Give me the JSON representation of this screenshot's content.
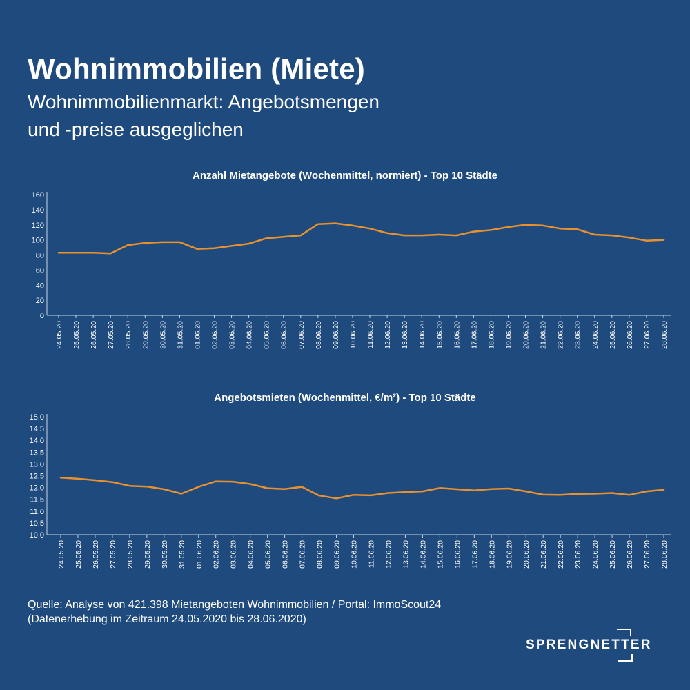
{
  "header": {
    "title": "Wohnimmobilien (Miete)",
    "subtitle_line1": "Wohnimmobilienmarkt: Angebotsmengen",
    "subtitle_line2": "und -preise ausgeglichen"
  },
  "colors": {
    "background": "#1f4a7d",
    "line": "#e8912e",
    "text": "#ffffff"
  },
  "chart_data": [
    {
      "type": "line",
      "title": "Anzahl Mietangebote (Wochenmittel, normiert) - Top 10 Städte",
      "xlabel": "",
      "ylabel": "",
      "categories": [
        "24.05.20",
        "25.05.20",
        "26.05.20",
        "27.05.20",
        "28.05.20",
        "29.05.20",
        "30.05.20",
        "31.05.20",
        "01.06.20",
        "02.06.20",
        "03.06.20",
        "04.06.20",
        "05.06.20",
        "06.06.20",
        "07.06.20",
        "08.06.20",
        "09.06.20",
        "10.06.20",
        "11.06.20",
        "12.06.20",
        "13.06.20",
        "14.06.20",
        "15.06.20",
        "16.06.20",
        "17.06.20",
        "18.06.20",
        "19.06.20",
        "20.06.20",
        "21.06.20",
        "22.06.20",
        "23.06.20",
        "24.06.20",
        "25.06.20",
        "26.06.20",
        "27.06.20",
        "28.06.20"
      ],
      "series": [
        {
          "values": [
            83,
            83,
            83,
            82,
            93,
            96,
            97,
            97,
            88,
            89,
            92,
            95,
            102,
            104,
            106,
            121,
            122,
            119,
            115,
            109,
            106,
            106,
            107,
            106,
            111,
            113,
            117,
            120,
            119,
            115,
            114,
            107,
            106,
            103,
            99,
            100
          ]
        }
      ],
      "ylim": [
        0,
        160
      ],
      "yticks": [
        "0",
        "20",
        "40",
        "60",
        "80",
        "100",
        "120",
        "140",
        "160"
      ],
      "grid": false
    },
    {
      "type": "line",
      "title": "Angebotsmieten (Wochenmittel, €/m²) - Top 10 Städte",
      "xlabel": "",
      "ylabel": "",
      "categories": [
        "24.05.20",
        "25.05.20",
        "26.05.20",
        "27.05.20",
        "28.05.20",
        "29.05.20",
        "30.05.20",
        "31.05.20",
        "01.06.20",
        "02.06.20",
        "03.06.20",
        "04.06.20",
        "05.06.20",
        "06.06.20",
        "07.06.20",
        "08.06.20",
        "09.06.20",
        "10.06.20",
        "11.06.20",
        "12.06.20",
        "13.06.20",
        "14.06.20",
        "15.06.20",
        "16.06.20",
        "17.06.20",
        "18.06.20",
        "19.06.20",
        "20.06.20",
        "21.06.20",
        "22.06.20",
        "23.06.20",
        "24.06.20",
        "25.06.20",
        "26.06.20",
        "27.06.20",
        "28.06.20"
      ],
      "series": [
        {
          "values": [
            12.42,
            12.37,
            12.31,
            12.23,
            12.07,
            12.04,
            11.93,
            11.74,
            12.03,
            12.26,
            12.25,
            12.15,
            11.97,
            11.94,
            12.03,
            11.66,
            11.54,
            11.69,
            11.67,
            11.77,
            11.81,
            11.84,
            11.98,
            11.93,
            11.88,
            11.94,
            11.96,
            11.84,
            11.7,
            11.69,
            11.73,
            11.74,
            11.77,
            11.69,
            11.84,
            11.91
          ]
        }
      ],
      "ylim": [
        10.0,
        15.0
      ],
      "yticks": [
        "10,0",
        "10,5",
        "11,0",
        "11,5",
        "12,0",
        "12,5",
        "13,0",
        "13,5",
        "14,0",
        "14,5",
        "15,0"
      ],
      "grid": false
    }
  ],
  "footer": {
    "source_line1": "Quelle: Analyse von 421.398 Mietangeboten Wohnimmobilien / Portal: ImmoScout24",
    "source_line2": "(Datenerhebung im Zeitraum 24.05.2020 bis 28.06.2020)",
    "logo_text": "SPRENGNETTER"
  }
}
